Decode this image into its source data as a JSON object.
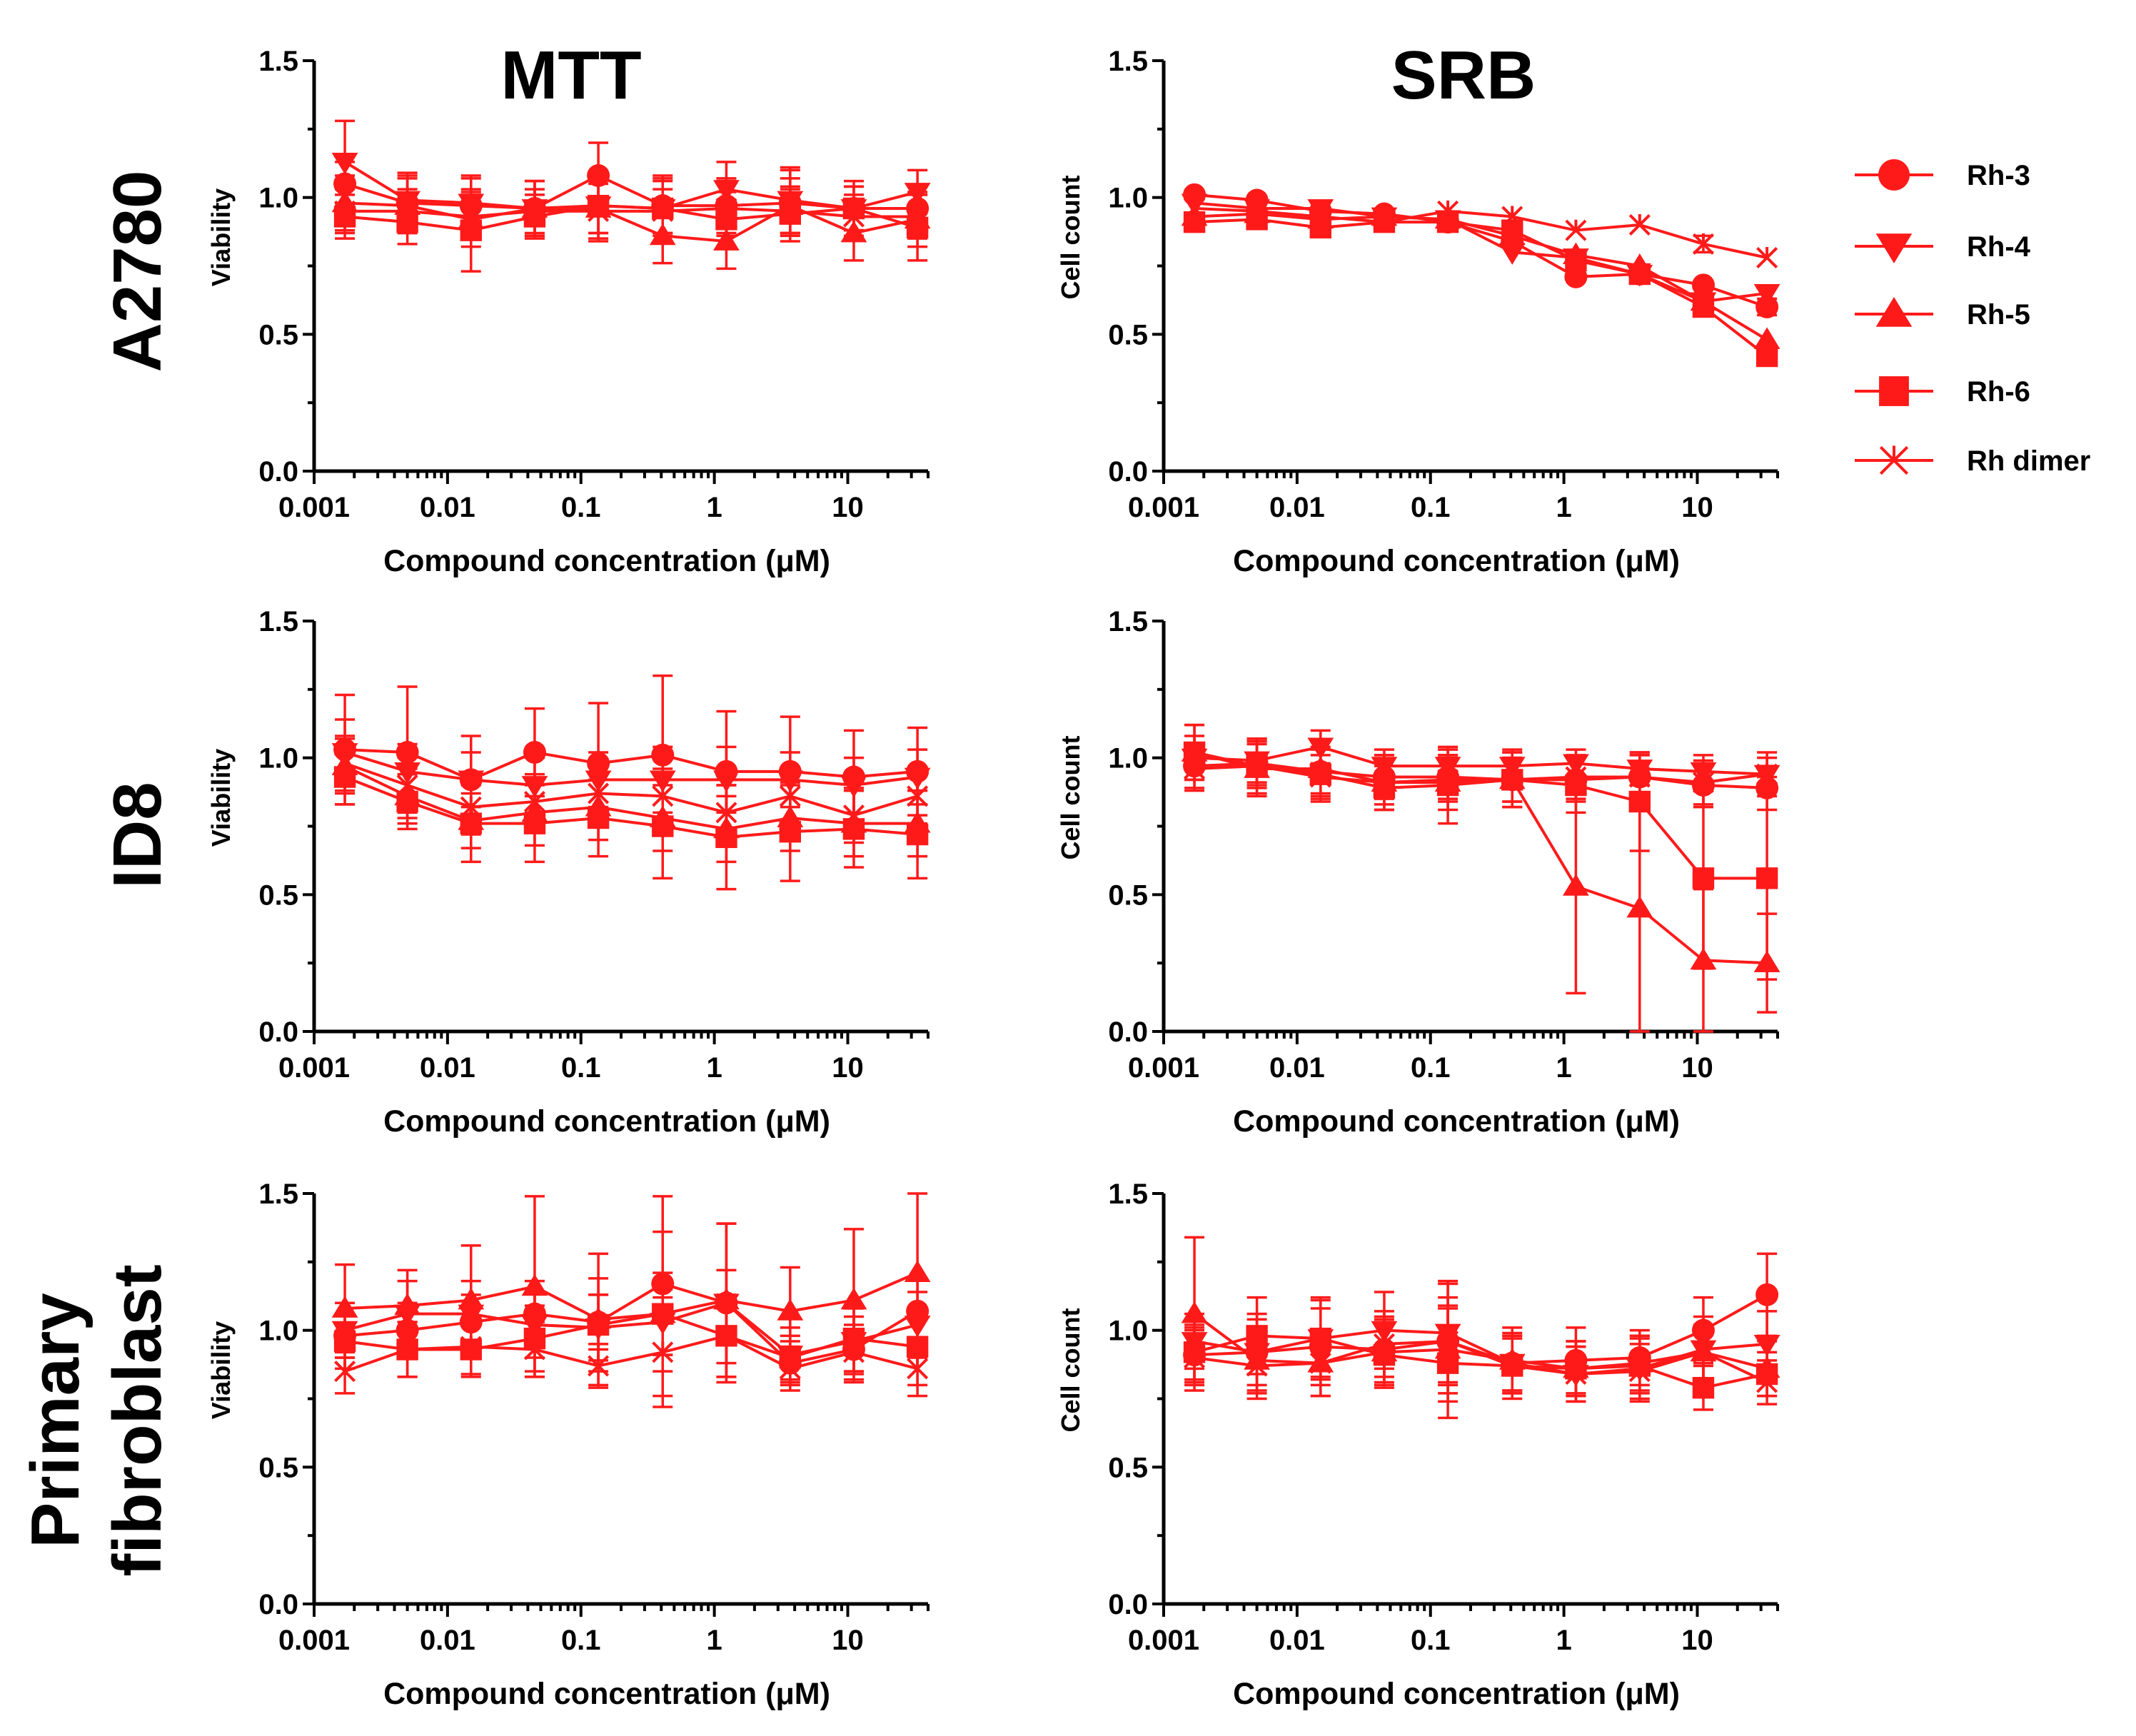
{
  "figure": {
    "column_titles": [
      "MTT",
      "SRB"
    ],
    "row_labels": [
      [
        "A2780"
      ],
      [
        "ID8"
      ],
      [
        "Primary",
        "fibroblast"
      ]
    ],
    "series_color": "#ff1a1a",
    "xlabel": "Compound concentration (μM)",
    "ylabels": [
      "Viability",
      "Cell count"
    ],
    "ytick_labels": [
      "0.0",
      "0.5",
      "1.0",
      "1.5"
    ],
    "xtick_labels": [
      "0.001",
      "0.01",
      "0.1",
      "1",
      "10"
    ]
  },
  "legend": [
    {
      "label": "Rh-3",
      "marker": "circle"
    },
    {
      "label": "Rh-4",
      "marker": "triangle-down"
    },
    {
      "label": "Rh-5",
      "marker": "triangle-up"
    },
    {
      "label": "Rh-6",
      "marker": "square"
    },
    {
      "label": "Rh dimer",
      "marker": "star-x"
    }
  ],
  "chart_data": [
    {
      "type": "line",
      "panel": "A2780 MTT",
      "title": "MTT",
      "xlabel": "Compound concentration (μM)",
      "ylabel": "Viability",
      "xscale": "log",
      "xlim": [
        0.001,
        40
      ],
      "ylim": [
        0,
        1.5
      ],
      "x": [
        0.0017,
        0.005,
        0.015,
        0.045,
        0.135,
        0.41,
        1.23,
        3.7,
        11.1,
        33.3
      ],
      "series": [
        {
          "name": "Rh-3",
          "values": [
            1.05,
            0.98,
            0.97,
            0.96,
            1.08,
            0.97,
            0.97,
            0.98,
            0.96,
            0.96
          ],
          "errors": [
            0.08,
            0.1,
            0.1,
            0.1,
            0.12,
            0.1,
            0.1,
            0.12,
            0.08,
            0.08
          ]
        },
        {
          "name": "Rh-4",
          "values": [
            1.13,
            0.99,
            0.98,
            0.96,
            0.97,
            0.96,
            1.03,
            0.99,
            0.96,
            1.02
          ],
          "errors": [
            0.15,
            0.1,
            0.1,
            0.1,
            0.1,
            0.12,
            0.1,
            0.12,
            0.08,
            0.08
          ]
        },
        {
          "name": "Rh-5",
          "values": [
            0.98,
            0.97,
            0.92,
            0.96,
            0.96,
            0.86,
            0.84,
            0.97,
            0.87,
            0.92
          ],
          "errors": [
            0.1,
            0.1,
            0.1,
            0.1,
            0.12,
            0.1,
            0.1,
            0.1,
            0.1,
            0.1
          ]
        },
        {
          "name": "Rh-6",
          "values": [
            0.93,
            0.91,
            0.88,
            0.93,
            0.97,
            0.96,
            0.92,
            0.94,
            0.96,
            0.89
          ],
          "errors": [
            0.08,
            0.08,
            0.15,
            0.08,
            0.1,
            0.1,
            0.1,
            0.1,
            0.1,
            0.12
          ]
        },
        {
          "name": "Rh dimer",
          "values": [
            0.95,
            0.95,
            0.93,
            0.95,
            0.95,
            0.95,
            0.96,
            0.95,
            0.93,
            0.93
          ],
          "errors": [
            0.08,
            0.08,
            0.08,
            0.08,
            0.1,
            0.08,
            0.1,
            0.08,
            0.08,
            0.08
          ]
        }
      ]
    },
    {
      "type": "line",
      "panel": "A2780 SRB",
      "title": "SRB",
      "xlabel": "Compound concentration (μM)",
      "ylabel": "Cell count",
      "xscale": "log",
      "xlim": [
        0.001,
        40
      ],
      "ylim": [
        0,
        1.5
      ],
      "x": [
        0.0017,
        0.005,
        0.015,
        0.045,
        0.135,
        0.41,
        1.23,
        3.7,
        11.1,
        33.3
      ],
      "series": [
        {
          "name": "Rh-3",
          "values": [
            1.01,
            0.99,
            0.95,
            0.94,
            0.91,
            0.84,
            0.71,
            0.72,
            0.68,
            0.6
          ],
          "errors": [
            0.02,
            0.02,
            0.02,
            0.02,
            0.02,
            0.02,
            0.02,
            0.02,
            0.02,
            0.03
          ]
        },
        {
          "name": "Rh-4",
          "values": [
            0.98,
            0.96,
            0.96,
            0.93,
            0.92,
            0.8,
            0.78,
            0.72,
            0.62,
            0.65
          ],
          "errors": [
            0.02,
            0.02,
            0.02,
            0.02,
            0.02,
            0.02,
            0.02,
            0.02,
            0.02,
            0.02
          ]
        },
        {
          "name": "Rh-5",
          "values": [
            0.93,
            0.94,
            0.92,
            0.93,
            0.92,
            0.86,
            0.79,
            0.75,
            0.62,
            0.48
          ],
          "errors": [
            0.02,
            0.02,
            0.02,
            0.02,
            0.02,
            0.02,
            0.02,
            0.02,
            0.02,
            0.02
          ]
        },
        {
          "name": "Rh-6",
          "values": [
            0.91,
            0.92,
            0.89,
            0.91,
            0.91,
            0.88,
            0.77,
            0.72,
            0.6,
            0.42
          ],
          "errors": [
            0.02,
            0.02,
            0.02,
            0.02,
            0.02,
            0.02,
            0.02,
            0.02,
            0.02,
            0.02
          ]
        },
        {
          "name": "Rh dimer",
          "values": [
            0.96,
            0.95,
            0.93,
            0.91,
            0.95,
            0.93,
            0.88,
            0.9,
            0.83,
            0.78
          ],
          "errors": [
            0.02,
            0.02,
            0.02,
            0.02,
            0.02,
            0.02,
            0.02,
            0.02,
            0.03,
            0.02
          ]
        }
      ]
    },
    {
      "type": "line",
      "panel": "ID8 MTT",
      "xlabel": "Compound concentration (μM)",
      "ylabel": "Viability",
      "xscale": "log",
      "xlim": [
        0.001,
        40
      ],
      "ylim": [
        0,
        1.5
      ],
      "x": [
        0.0017,
        0.005,
        0.015,
        0.045,
        0.135,
        0.41,
        1.23,
        3.7,
        11.1,
        33.3
      ],
      "series": [
        {
          "name": "Rh-3",
          "values": [
            1.03,
            1.02,
            0.92,
            1.02,
            0.98,
            1.01,
            0.95,
            0.95,
            0.93,
            0.95
          ],
          "errors": [
            0.2,
            0.24,
            0.16,
            0.16,
            0.22,
            0.29,
            0.22,
            0.2,
            0.17,
            0.16
          ]
        },
        {
          "name": "Rh-4",
          "values": [
            1.02,
            0.95,
            0.92,
            0.9,
            0.92,
            0.92,
            0.92,
            0.92,
            0.9,
            0.93
          ],
          "errors": [
            0.12,
            0.1,
            0.1,
            0.1,
            0.1,
            0.12,
            0.12,
            0.1,
            0.1,
            0.1
          ]
        },
        {
          "name": "Rh-5",
          "values": [
            0.97,
            0.86,
            0.77,
            0.8,
            0.82,
            0.78,
            0.74,
            0.78,
            0.76,
            0.76
          ],
          "errors": [
            0.1,
            0.1,
            0.1,
            0.12,
            0.12,
            0.12,
            0.12,
            0.12,
            0.12,
            0.12
          ]
        },
        {
          "name": "Rh-6",
          "values": [
            0.93,
            0.84,
            0.76,
            0.76,
            0.78,
            0.75,
            0.71,
            0.73,
            0.74,
            0.72
          ],
          "errors": [
            0.1,
            0.1,
            0.14,
            0.14,
            0.14,
            0.19,
            0.19,
            0.18,
            0.14,
            0.16
          ]
        },
        {
          "name": "Rh dimer",
          "values": [
            0.98,
            0.9,
            0.82,
            0.84,
            0.87,
            0.86,
            0.8,
            0.86,
            0.79,
            0.86
          ],
          "errors": [
            0.1,
            0.1,
            0.1,
            0.1,
            0.1,
            0.1,
            0.1,
            0.1,
            0.1,
            0.1
          ]
        }
      ]
    },
    {
      "type": "line",
      "panel": "ID8 SRB",
      "xlabel": "Compound concentration (μM)",
      "ylabel": "Cell count",
      "xscale": "log",
      "xlim": [
        0.001,
        40
      ],
      "ylim": [
        0,
        1.5
      ],
      "x": [
        0.0017,
        0.005,
        0.015,
        0.045,
        0.135,
        0.41,
        1.23,
        3.7,
        11.1,
        33.3
      ],
      "series": [
        {
          "name": "Rh-3",
          "values": [
            0.97,
            0.98,
            0.95,
            0.93,
            0.93,
            0.92,
            0.92,
            0.93,
            0.9,
            0.89
          ],
          "errors": [
            0.08,
            0.08,
            0.08,
            0.08,
            0.08,
            0.08,
            0.08,
            0.08,
            0.08,
            0.08
          ]
        },
        {
          "name": "Rh-4",
          "values": [
            1.0,
            0.99,
            1.04,
            0.97,
            0.97,
            0.97,
            0.98,
            0.96,
            0.95,
            0.94
          ],
          "errors": [
            0.08,
            0.08,
            0.06,
            0.06,
            0.06,
            0.06,
            0.05,
            0.06,
            0.06,
            0.06
          ]
        },
        {
          "name": "Rh-5",
          "values": [
            1.02,
            0.96,
            0.96,
            0.91,
            0.91,
            0.92,
            0.53,
            0.45,
            0.26,
            0.25
          ],
          "errors": [
            0.1,
            0.1,
            0.1,
            0.1,
            0.1,
            0.1,
            0.39,
            0.45,
            0.26,
            0.18
          ]
        },
        {
          "name": "Rh-6",
          "values": [
            1.02,
            0.97,
            0.94,
            0.89,
            0.9,
            0.92,
            0.9,
            0.84,
            0.56,
            0.56
          ],
          "errors": [
            0.1,
            0.1,
            0.1,
            0.08,
            0.14,
            0.1,
            0.1,
            0.18,
            0.33,
            0.37
          ]
        },
        {
          "name": "Rh dimer",
          "values": [
            0.96,
            0.97,
            0.93,
            0.91,
            0.92,
            0.92,
            0.93,
            0.93,
            0.91,
            0.94
          ],
          "errors": [
            0.08,
            0.08,
            0.08,
            0.08,
            0.08,
            0.08,
            0.08,
            0.08,
            0.08,
            0.08
          ]
        }
      ]
    },
    {
      "type": "line",
      "panel": "Primary fibroblast MTT",
      "xlabel": "Compound concentration (μM)",
      "ylabel": "Viability",
      "xscale": "log",
      "xlim": [
        0.001,
        40
      ],
      "ylim": [
        0,
        1.5
      ],
      "x": [
        0.0017,
        0.005,
        0.015,
        0.045,
        0.135,
        0.41,
        1.23,
        3.7,
        11.1,
        33.3
      ],
      "series": [
        {
          "name": "Rh-3",
          "values": [
            0.98,
            1.0,
            1.03,
            1.06,
            1.03,
            1.17,
            1.1,
            0.88,
            0.93,
            1.07
          ],
          "errors": [
            0.08,
            0.1,
            0.1,
            0.12,
            0.1,
            0.32,
            0.29,
            0.08,
            0.12,
            0.12
          ]
        },
        {
          "name": "Rh-4",
          "values": [
            1.0,
            1.06,
            1.06,
            1.02,
            1.01,
            1.03,
            1.1,
            0.91,
            0.96,
            1.02
          ],
          "errors": [
            0.1,
            0.12,
            0.12,
            0.12,
            0.12,
            0.12,
            0.12,
            0.1,
            0.12,
            0.12
          ]
        },
        {
          "name": "Rh-5",
          "values": [
            1.08,
            1.09,
            1.11,
            1.16,
            1.04,
            1.06,
            1.11,
            1.07,
            1.11,
            1.21
          ],
          "errors": [
            0.16,
            0.13,
            0.2,
            0.33,
            0.24,
            0.3,
            0.28,
            0.16,
            0.26,
            0.29
          ]
        },
        {
          "name": "Rh-6",
          "values": [
            0.96,
            0.93,
            0.93,
            0.97,
            1.02,
            1.06,
            0.98,
            0.9,
            0.97,
            0.94
          ],
          "errors": [
            0.1,
            0.1,
            0.1,
            0.12,
            0.17,
            0.15,
            0.15,
            0.08,
            0.12,
            0.14
          ]
        },
        {
          "name": "Rh dimer",
          "values": [
            0.85,
            0.93,
            0.94,
            0.93,
            0.87,
            0.92,
            0.98,
            0.86,
            0.92,
            0.86
          ],
          "errors": [
            0.08,
            0.1,
            0.1,
            0.1,
            0.08,
            0.2,
            0.1,
            0.08,
            0.1,
            0.1
          ]
        }
      ]
    },
    {
      "type": "line",
      "panel": "Primary fibroblast SRB",
      "xlabel": "Compound concentration (μM)",
      "ylabel": "Cell count",
      "xscale": "log",
      "xlim": [
        0.001,
        40
      ],
      "ylim": [
        0,
        1.5
      ],
      "x": [
        0.0017,
        0.005,
        0.015,
        0.045,
        0.135,
        0.41,
        1.23,
        3.7,
        11.1,
        33.3
      ],
      "series": [
        {
          "name": "Rh-3",
          "values": [
            0.91,
            0.92,
            0.94,
            0.93,
            0.96,
            0.88,
            0.89,
            0.9,
            1.0,
            1.13
          ],
          "errors": [
            0.1,
            0.12,
            0.14,
            0.12,
            0.22,
            0.1,
            0.12,
            0.1,
            0.12,
            0.15
          ]
        },
        {
          "name": "Rh-4",
          "values": [
            0.96,
            0.92,
            0.97,
            1.0,
            0.99,
            0.88,
            0.84,
            0.86,
            0.93,
            0.95
          ],
          "errors": [
            0.1,
            0.14,
            0.15,
            0.14,
            0.18,
            0.1,
            0.1,
            0.12,
            0.12,
            0.12
          ]
        },
        {
          "name": "Rh-5",
          "values": [
            1.06,
            0.89,
            0.88,
            0.92,
            0.93,
            0.89,
            0.86,
            0.88,
            0.92,
            0.86
          ],
          "errors": [
            0.28,
            0.12,
            0.12,
            0.12,
            0.16,
            0.12,
            0.1,
            0.1,
            0.1,
            0.1
          ]
        },
        {
          "name": "Rh-6",
          "values": [
            0.92,
            0.98,
            0.97,
            0.91,
            0.88,
            0.87,
            0.86,
            0.87,
            0.79,
            0.84
          ],
          "errors": [
            0.1,
            0.14,
            0.14,
            0.12,
            0.2,
            0.1,
            0.1,
            0.1,
            0.08,
            0.08
          ]
        },
        {
          "name": "Rh dimer",
          "values": [
            0.9,
            0.87,
            0.88,
            0.95,
            0.96,
            0.87,
            0.84,
            0.85,
            0.92,
            0.81
          ],
          "errors": [
            0.1,
            0.12,
            0.12,
            0.12,
            0.16,
            0.12,
            0.1,
            0.1,
            0.1,
            0.08
          ]
        }
      ]
    }
  ]
}
